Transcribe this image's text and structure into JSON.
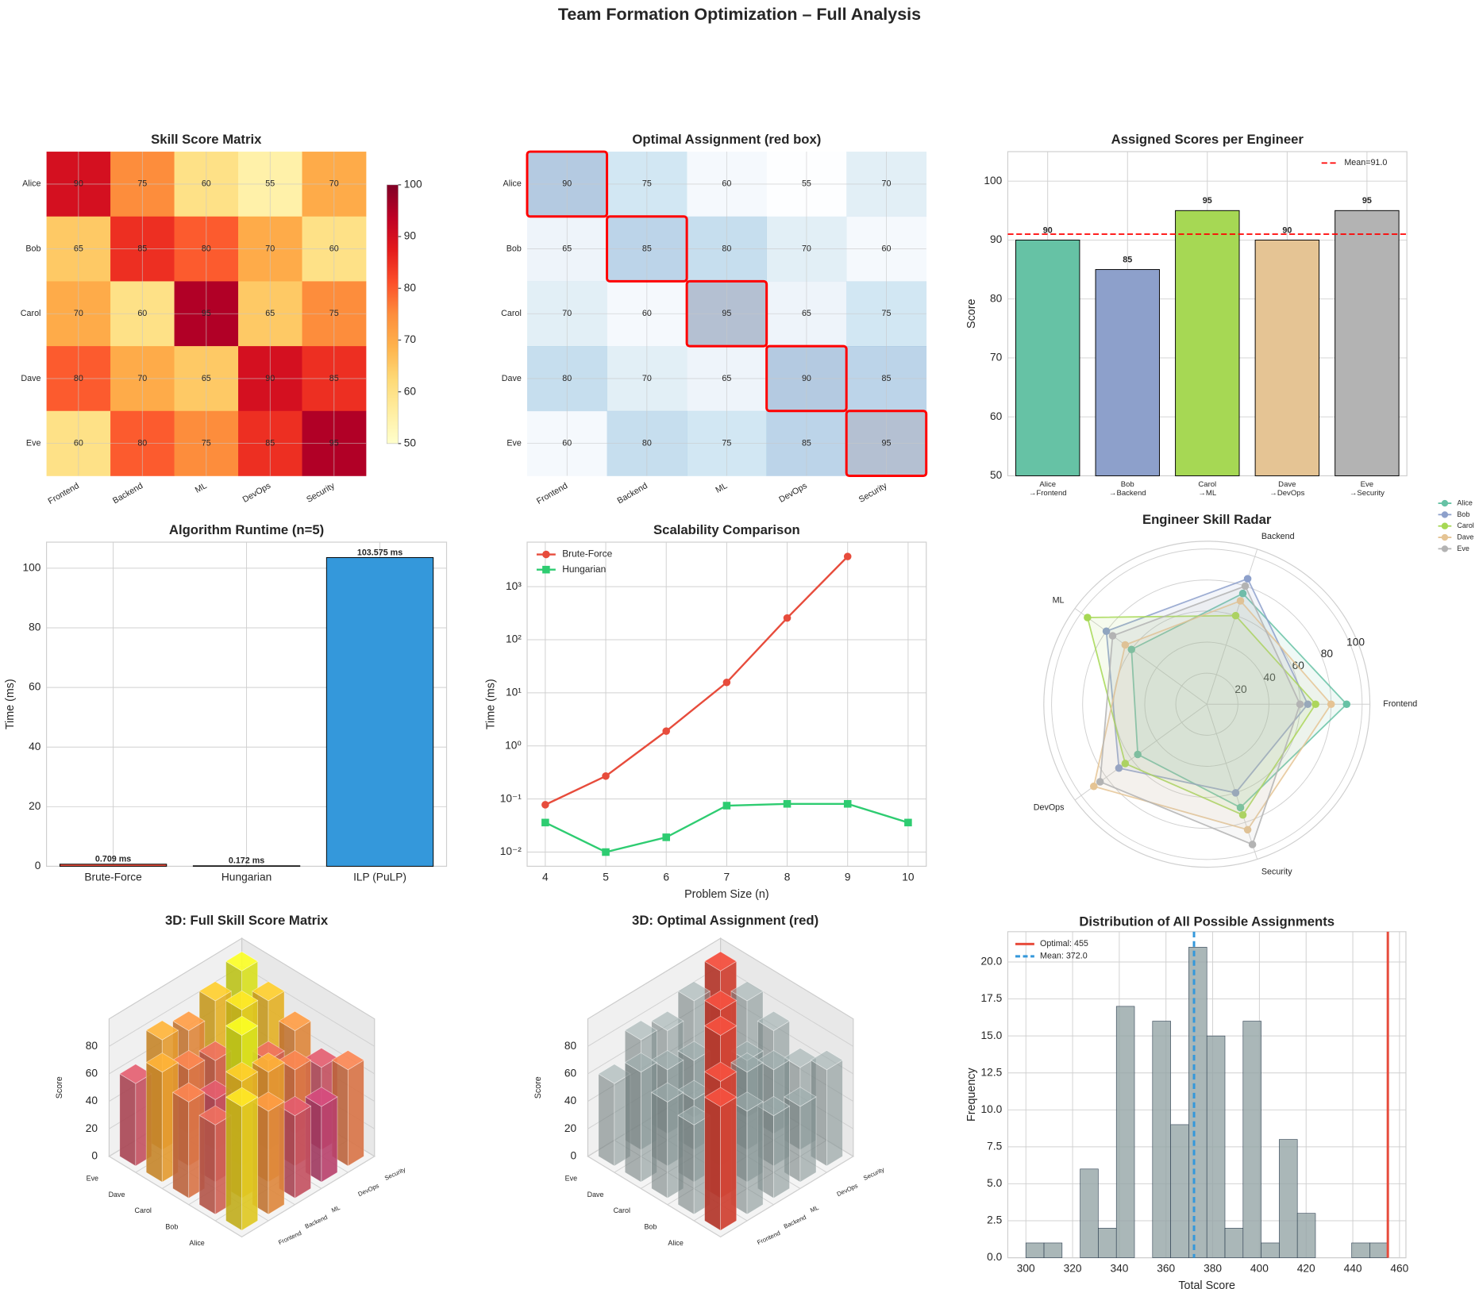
{
  "title": "Team Formation Optimization – Full Analysis",
  "chart_data": [
    {
      "type": "heatmap",
      "title": "Skill Score Matrix",
      "rows": [
        "Alice",
        "Bob",
        "Carol",
        "Dave",
        "Eve"
      ],
      "columns": [
        "Frontend",
        "Backend",
        "ML",
        "DevOps",
        "Security"
      ],
      "values": [
        [
          90,
          75,
          60,
          55,
          70
        ],
        [
          65,
          85,
          80,
          70,
          60
        ],
        [
          70,
          60,
          95,
          65,
          75
        ],
        [
          80,
          70,
          65,
          90,
          85
        ],
        [
          60,
          80,
          75,
          85,
          95
        ]
      ],
      "colormap": "YlOrRd",
      "colorbar": {
        "lim": [
          50,
          100
        ],
        "ticks": [
          50,
          60,
          70,
          80,
          90,
          100
        ]
      }
    },
    {
      "type": "heatmap",
      "title": "Optimal Assignment (red box)",
      "rows": [
        "Alice",
        "Bob",
        "Carol",
        "Dave",
        "Eve"
      ],
      "columns": [
        "Frontend",
        "Backend",
        "ML",
        "DevOps",
        "Security"
      ],
      "values": [
        [
          90,
          75,
          60,
          55,
          70
        ],
        [
          65,
          85,
          80,
          70,
          60
        ],
        [
          70,
          60,
          95,
          65,
          75
        ],
        [
          80,
          70,
          65,
          90,
          85
        ],
        [
          60,
          80,
          75,
          85,
          95
        ]
      ],
      "colormap": "Blues",
      "highlight": [
        0,
        1,
        2,
        3,
        4
      ],
      "highlight_color": "#ff0000"
    },
    {
      "type": "bar",
      "title": "Assigned Scores per Engineer",
      "categories": [
        "Alice\n→Frontend",
        "Bob\n→Backend",
        "Carol\n→ML",
        "Dave\n→DevOps",
        "Eve\n→Security"
      ],
      "values": [
        90,
        85,
        95,
        90,
        95
      ],
      "colors": [
        "#66c2a5",
        "#8da0cb",
        "#a6d854",
        "#e5c494",
        "#b3b3b3"
      ],
      "ylabel": "Score",
      "ylim": [
        50,
        105
      ],
      "yticks": [
        50,
        60,
        70,
        80,
        90,
        100
      ],
      "mean_line": {
        "value": 91,
        "label": "Mean=91.0",
        "color": "#ff0000"
      }
    },
    {
      "type": "bar",
      "title": "Algorithm Runtime (n=5)",
      "categories": [
        "Brute-Force",
        "Hungarian",
        "ILP (PuLP)"
      ],
      "values": [
        0.709,
        0.172,
        103.575
      ],
      "value_labels": [
        "0.709 ms",
        "0.172 ms",
        "103.575 ms"
      ],
      "colors": [
        "#e74c3c",
        "#2ecc71",
        "#3498db"
      ],
      "ylabel": "Time (ms)",
      "ylim": [
        0,
        108.75
      ],
      "yticks": [
        0,
        20,
        40,
        60,
        80,
        100
      ]
    },
    {
      "type": "line",
      "title": "Scalability Comparison",
      "x": [
        4,
        5,
        6,
        7,
        8,
        9,
        10
      ],
      "xlabel": "Problem Size (n)",
      "ylabel": "Time (ms)",
      "log_y": true,
      "xlim": [
        3.7,
        10.3
      ],
      "xticks": [
        4,
        5,
        6,
        7,
        8,
        9,
        10
      ],
      "ylim": [
        0.0054,
        6900
      ],
      "yticks": [
        {
          "value": 0.01,
          "label": "10⁻²"
        },
        {
          "value": 0.1,
          "label": "10⁻¹"
        },
        {
          "value": 1,
          "label": "10⁰"
        },
        {
          "value": 10,
          "label": "10¹"
        },
        {
          "value": 100,
          "label": "10²"
        },
        {
          "value": 1000,
          "label": "10³"
        }
      ],
      "legend": "upper left",
      "series": [
        {
          "name": "Brute-Force",
          "color": "#e74c3c",
          "marker": "circle",
          "values": [
            0.078,
            0.27,
            1.9,
            15.7,
            257,
            3700,
            null
          ]
        },
        {
          "name": "Hungarian",
          "color": "#2ecc71",
          "marker": "square",
          "values": [
            0.036,
            0.01,
            0.019,
            0.075,
            0.081,
            0.081,
            0.036
          ]
        }
      ]
    },
    {
      "type": "radar",
      "title": "Engineer Skill Radar",
      "axes": [
        "Frontend",
        "Backend",
        "ML",
        "DevOps",
        "Security"
      ],
      "rlim": [
        0,
        105
      ],
      "rticks": [
        20,
        40,
        60,
        80,
        100
      ],
      "series": [
        {
          "name": "Alice",
          "color": "#66c2a5",
          "values": [
            90,
            75,
            60,
            55,
            70
          ]
        },
        {
          "name": "Bob",
          "color": "#8da0cb",
          "values": [
            65,
            85,
            80,
            70,
            60
          ]
        },
        {
          "name": "Carol",
          "color": "#a6d854",
          "values": [
            70,
            60,
            95,
            65,
            75
          ]
        },
        {
          "name": "Dave",
          "color": "#e5c494",
          "values": [
            80,
            70,
            65,
            90,
            85
          ]
        },
        {
          "name": "Eve",
          "color": "#b3b3b3",
          "values": [
            60,
            80,
            75,
            85,
            95
          ]
        }
      ]
    },
    {
      "type": "bar3d",
      "title": "3D: Full Skill Score Matrix",
      "rows": [
        "Alice",
        "Bob",
        "Carol",
        "Dave",
        "Eve"
      ],
      "columns": [
        "Frontend",
        "Backend",
        "ML",
        "DevOps",
        "Security"
      ],
      "values": [
        [
          90,
          75,
          60,
          55,
          70
        ],
        [
          65,
          85,
          80,
          70,
          60
        ],
        [
          70,
          60,
          95,
          65,
          75
        ],
        [
          80,
          70,
          65,
          90,
          85
        ],
        [
          60,
          80,
          75,
          85,
          95
        ]
      ],
      "zlabel": "Score",
      "zlim": [
        0,
        100
      ],
      "zticks": [
        0,
        20,
        40,
        60,
        80
      ],
      "colormap": "plasma"
    },
    {
      "type": "bar3d",
      "title": "3D: Optimal Assignment (red)",
      "rows": [
        "Alice",
        "Bob",
        "Carol",
        "Dave",
        "Eve"
      ],
      "columns": [
        "Frontend",
        "Backend",
        "ML",
        "DevOps",
        "Security"
      ],
      "values": [
        [
          90,
          75,
          60,
          55,
          70
        ],
        [
          65,
          85,
          80,
          70,
          60
        ],
        [
          70,
          60,
          95,
          65,
          75
        ],
        [
          80,
          70,
          65,
          90,
          85
        ],
        [
          60,
          80,
          75,
          85,
          95
        ]
      ],
      "zlabel": "Score",
      "zlim": [
        0,
        100
      ],
      "zticks": [
        0,
        20,
        40,
        60,
        80
      ],
      "color": "#95a5a6",
      "highlight": [
        0,
        1,
        2,
        3,
        4
      ],
      "highlight_color": "#e74c3c"
    },
    {
      "type": "histogram",
      "title": "Distribution of All Possible Assignments",
      "xlabel": "Total Score",
      "ylabel": "Frequency",
      "color": "#95a5a6",
      "bins": [
        300,
        307.75,
        315.5,
        323.25,
        331,
        338.75,
        346.5,
        354.25,
        362,
        369.75,
        377.5,
        385.25,
        393,
        400.75,
        408.5,
        416.25,
        424,
        431.75,
        439.5,
        447.25,
        455
      ],
      "counts": [
        1,
        1,
        0,
        6,
        2,
        17,
        0,
        16,
        9,
        21,
        15,
        2,
        16,
        1,
        8,
        3,
        0,
        0,
        1,
        1
      ],
      "xlim": [
        292.25,
        462.75
      ],
      "xticks": [
        300,
        320,
        340,
        360,
        380,
        400,
        420,
        440,
        460
      ],
      "ylim": [
        0,
        22.05
      ],
      "yticks": [
        {
          "value": 0,
          "label": "0.0"
        },
        2.5,
        {
          "value": 5,
          "label": "5.0"
        },
        7.5,
        {
          "value": 10,
          "label": "10.0"
        },
        12.5,
        {
          "value": 15,
          "label": "15.0"
        },
        17.5,
        {
          "value": 20,
          "label": "20.0"
        }
      ],
      "legend": "upper left",
      "lines": [
        {
          "name": "Optimal: 455",
          "value": 455,
          "color": "#e74c3c",
          "style": "solid"
        },
        {
          "name": "Mean: 372.0",
          "value": 372,
          "color": "#3498db",
          "style": "dashed"
        }
      ]
    }
  ]
}
